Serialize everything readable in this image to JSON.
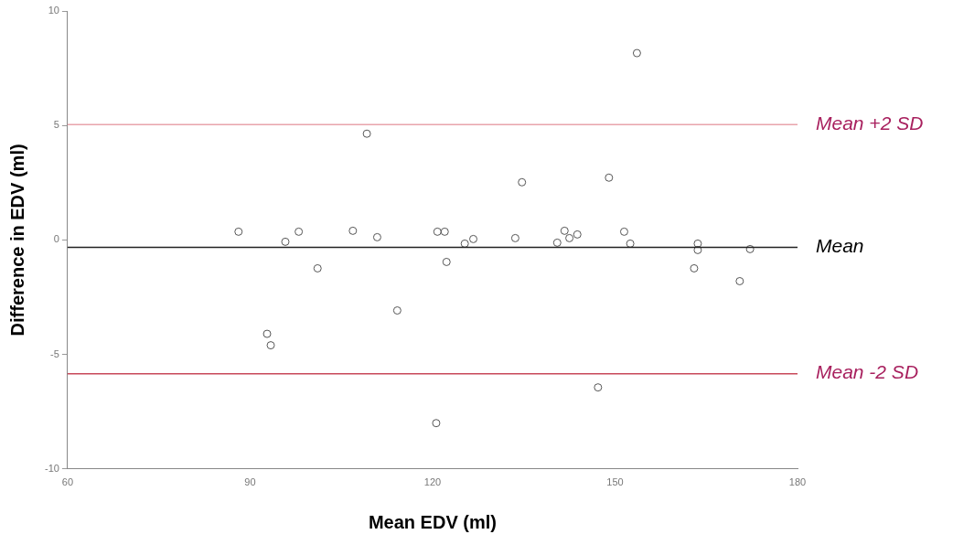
{
  "chart_data": {
    "type": "scatter",
    "xlabel": "Mean EDV (ml)",
    "ylabel": "Difference in EDV (ml)",
    "xlim": [
      60,
      180
    ],
    "xticks": [
      60,
      90,
      120,
      150,
      180
    ],
    "ylim": [
      -10,
      10
    ],
    "yticks": [
      -10,
      -5,
      0,
      5,
      10
    ],
    "marker": "circle",
    "grid": false,
    "legend": false,
    "series": [
      {
        "color": "#555555",
        "x": [
          88.1,
          92.8,
          93.4,
          95.8,
          98,
          101.1,
          106.9,
          109.2,
          110.9,
          114.2,
          120.6,
          120.8,
          122,
          122.3,
          125.3,
          126.7,
          133.6,
          134.7,
          140.5,
          141.7,
          142.5,
          143.8,
          147.2,
          149,
          151.5,
          152.5,
          153.6,
          163,
          163.6,
          163.6,
          170.5,
          172.2
        ],
        "values": [
          0.36,
          -4.1,
          -4.6,
          -0.08,
          0.36,
          -1.24,
          0.4,
          4.64,
          0.12,
          -3.08,
          -8,
          0.36,
          0.36,
          -0.96,
          -0.16,
          0.04,
          0.08,
          2.52,
          -0.12,
          0.4,
          0.08,
          0.24,
          -6.44,
          2.72,
          0.36,
          -0.16,
          8.16,
          -1.24,
          -0.16,
          -0.44,
          -1.8,
          -0.4
        ]
      }
    ],
    "ref_lines": [
      {
        "axis": "y",
        "value": 5.04,
        "label": "Mean +2 SD",
        "color": "#e8a4ac"
      },
      {
        "axis": "y",
        "value": -0.32,
        "label": "Mean",
        "color": "#222222"
      },
      {
        "axis": "y",
        "value": -5.84,
        "label": "Mean -2 SD",
        "color": "#c8485a"
      }
    ]
  }
}
